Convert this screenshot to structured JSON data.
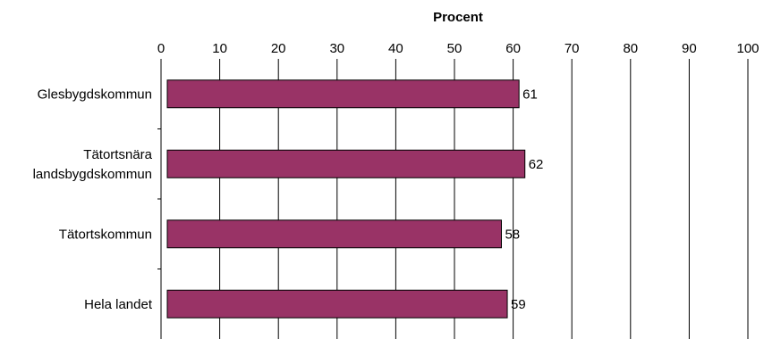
{
  "chart_data": {
    "type": "bar",
    "orientation": "horizontal",
    "categories": [
      [
        "Glesbygdskommun"
      ],
      [
        "Tätortsnära",
        "landsbygdskommun"
      ],
      [
        "Tätortskommun"
      ],
      [
        "Hela landet"
      ]
    ],
    "values": [
      61,
      62,
      58,
      59
    ],
    "data_labels": [
      "61",
      "62",
      "58",
      "59"
    ],
    "title": "",
    "xlabel": "Procent",
    "ylabel": "",
    "xlim": [
      0,
      100
    ],
    "x_ticks": [
      0,
      10,
      20,
      30,
      40,
      50,
      60,
      70,
      80,
      90,
      100
    ],
    "x_axis_position": "top",
    "grid": "vertical",
    "legend": "none",
    "colors": {
      "bar_fill": "#993366",
      "bar_stroke": "#000000",
      "grid": "#000000"
    }
  }
}
